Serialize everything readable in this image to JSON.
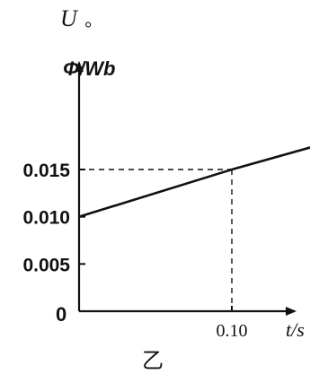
{
  "header": {
    "symbol": "U",
    "punctuation": "。"
  },
  "caption": "乙",
  "chart_data": {
    "type": "line",
    "ylabel": "Φ/Wb",
    "xlabel": "t/s",
    "origin_label": "0",
    "y_ticks": [
      "0.005",
      "0.010",
      "0.015"
    ],
    "y_tick_values": [
      0.005,
      0.01,
      0.015
    ],
    "x_ticks": [
      "0.10"
    ],
    "x_tick_values": [
      0.1
    ],
    "xlim": [
      0,
      0.155
    ],
    "ylim": [
      0,
      0.0205
    ],
    "series": [
      {
        "x": [
          0,
          0.1,
          0.155
        ],
        "y": [
          0.01,
          0.015,
          0.0175
        ]
      }
    ],
    "guides": [
      {
        "x": 0.1,
        "y": 0.015,
        "style": "dashed"
      }
    ],
    "colors": {
      "line": "#111111",
      "axis": "#111111"
    }
  }
}
